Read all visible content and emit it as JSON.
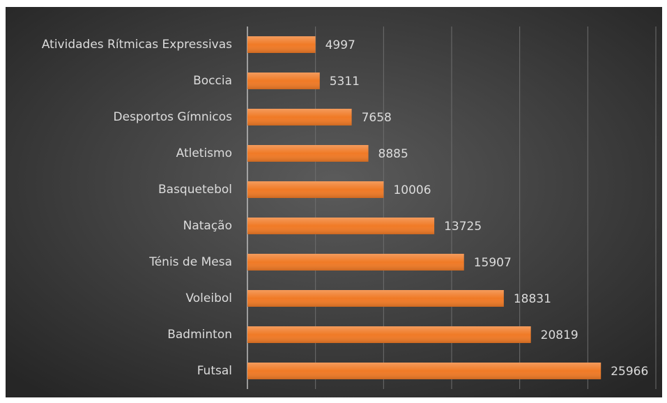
{
  "chart_data": {
    "type": "barh",
    "categories": [
      "Atividades Rítmicas Expressivas",
      "Boccia",
      "Desportos Gímnicos",
      "Atletismo",
      "Basquetebol",
      "Natação",
      "Ténis de Mesa",
      "Voleibol",
      "Badminton",
      "Futsal"
    ],
    "values": [
      4997,
      5311,
      7658,
      8885,
      10006,
      13725,
      15907,
      18831,
      20819,
      25966
    ],
    "color": "#f07a26",
    "xlim": [
      0,
      30000
    ],
    "xticks": [
      0,
      5000,
      10000,
      15000,
      20000,
      25000,
      30000
    ],
    "grid": true
  }
}
